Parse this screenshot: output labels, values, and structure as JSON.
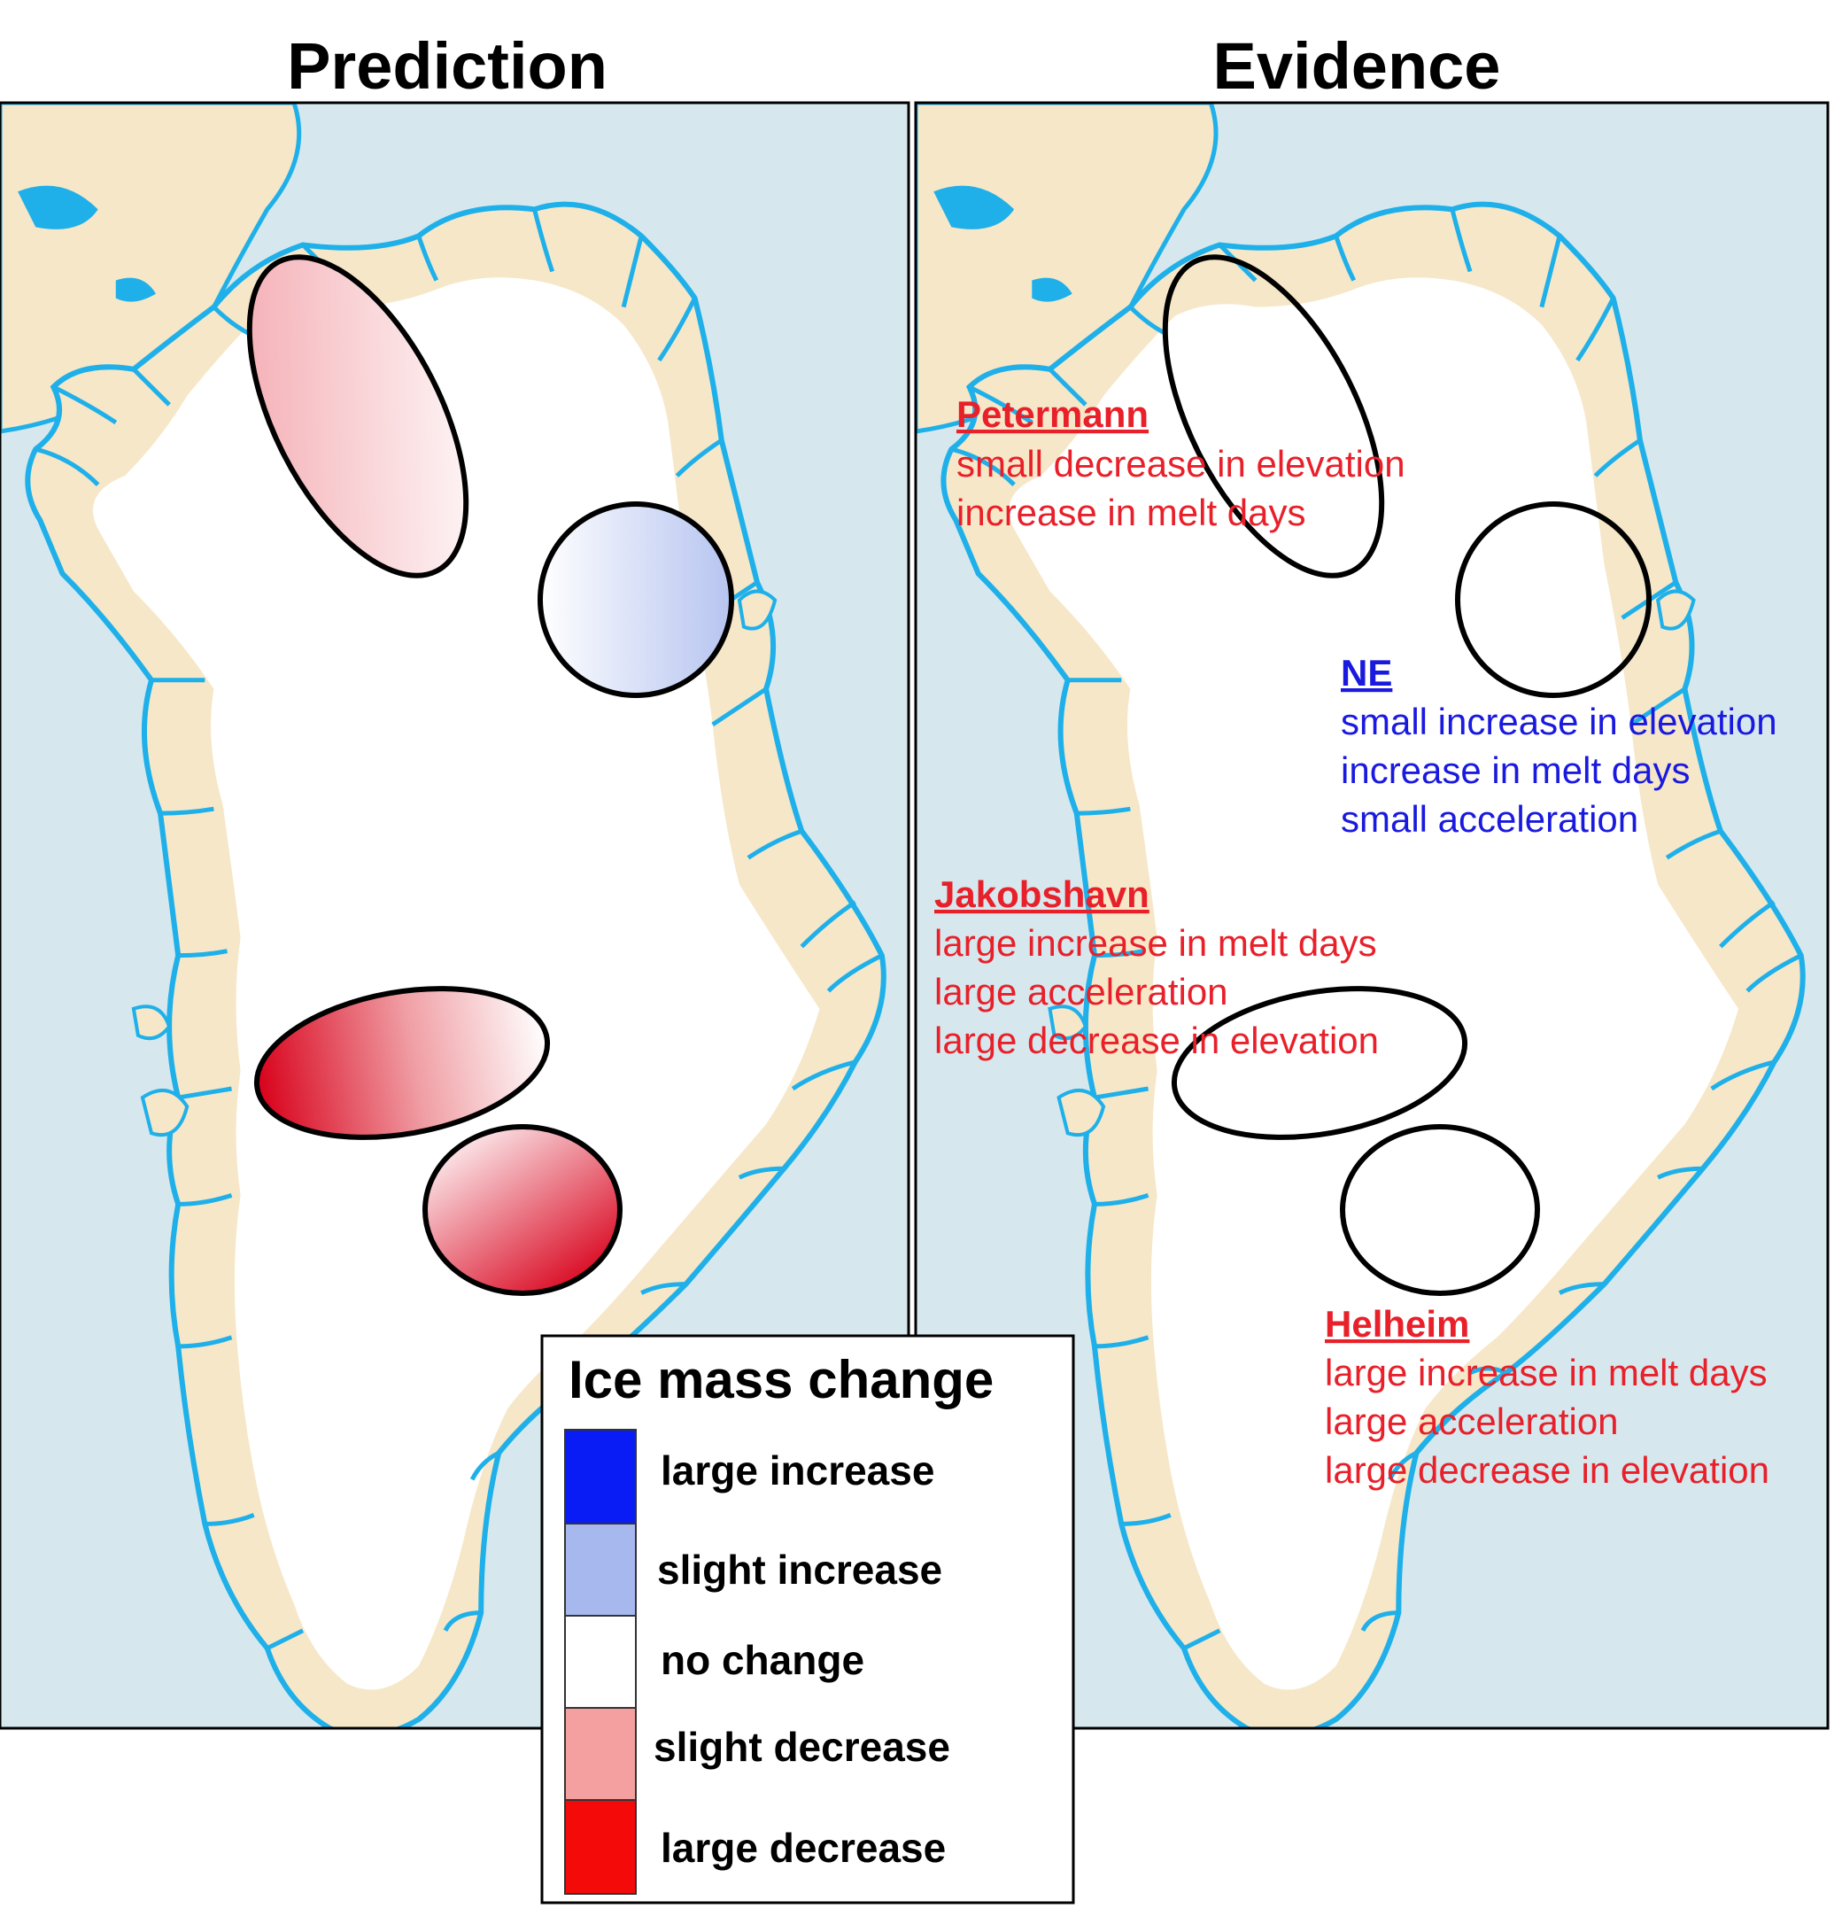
{
  "titles": {
    "prediction": "Prediction",
    "evidence": "Evidence"
  },
  "colors": {
    "ocean": "#d6e8ee",
    "land": "#f6e7c8",
    "ice": "#ffffff",
    "water": "#1fb0ea",
    "red_text": "#e8202a",
    "blue_text": "#1a1adf",
    "large_increase": "#0a1cf5",
    "slight_increase": "#a6b8ee",
    "no_change": "#ffffff",
    "slight_decrease": "#f4a0a0",
    "large_decrease": "#f50a0a"
  },
  "evidence": {
    "petermann": {
      "name": "Petermann",
      "lines": [
        "small decrease in elevation",
        "increase in melt days"
      ]
    },
    "ne": {
      "name": "NE",
      "lines": [
        "small increase in elevation",
        "increase in melt days",
        "small acceleration"
      ]
    },
    "jakobshavn": {
      "name": "Jakobshavn",
      "lines": [
        "large increase in melt days",
        "large acceleration",
        "large decrease in elevation"
      ]
    },
    "helheim": {
      "name": "Helheim",
      "lines": [
        "large increase in melt days",
        "large acceleration",
        "large decrease in elevation"
      ]
    }
  },
  "legend": {
    "title": "Ice mass change",
    "items": [
      {
        "label": "large increase"
      },
      {
        "label": "slight increase"
      },
      {
        "label": "no change"
      },
      {
        "label": "slight decrease"
      },
      {
        "label": "large decrease"
      }
    ]
  }
}
